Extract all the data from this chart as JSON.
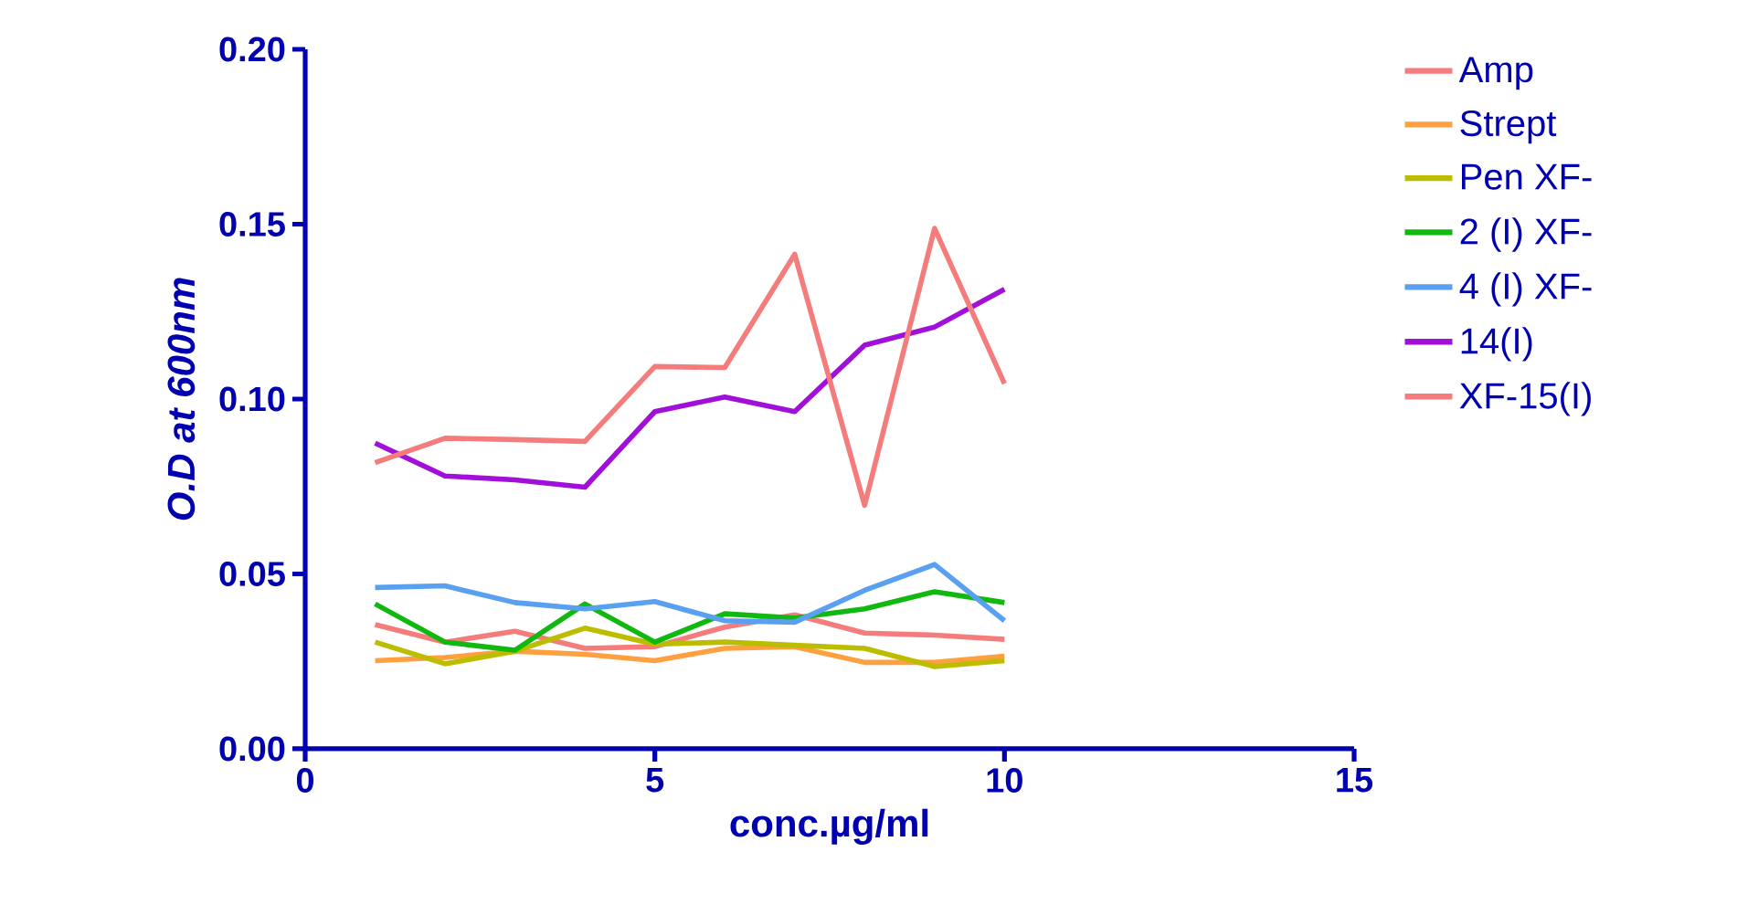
{
  "chart_data": {
    "type": "line",
    "xlabel": "conc.µg/ml",
    "ylabel": "O.D at 600nm",
    "x": [
      1,
      2,
      3,
      4,
      5,
      6,
      7,
      8,
      9,
      10
    ],
    "series": [
      {
        "name": "Amp",
        "color": "#f47c7c",
        "values": [
          0.0355,
          0.0305,
          0.0336,
          0.0287,
          0.0292,
          0.0348,
          0.0383,
          0.0331,
          0.0325,
          0.0313
        ]
      },
      {
        "name": "Strept",
        "color": "#ffa040",
        "values": [
          0.0252,
          0.0261,
          0.0279,
          0.027,
          0.0252,
          0.0287,
          0.0292,
          0.0247,
          0.0247,
          0.0265
        ]
      },
      {
        "name": "Pen XF-",
        "color": "#bdbd00",
        "values": [
          0.0305,
          0.0243,
          0.0279,
          0.0345,
          0.0299,
          0.0305,
          0.0296,
          0.0287,
          0.0235,
          0.0252
        ]
      },
      {
        "name": "2 (I) XF-",
        "color": "#10b810",
        "values": [
          0.0414,
          0.0305,
          0.0282,
          0.0414,
          0.0305,
          0.0386,
          0.0374,
          0.04,
          0.0449,
          0.0418
        ]
      },
      {
        "name": "4 (I) XF-",
        "color": "#5aa0f0",
        "values": [
          0.0461,
          0.0466,
          0.0418,
          0.04,
          0.0421,
          0.0366,
          0.0362,
          0.0453,
          0.0527,
          0.0366
        ]
      },
      {
        "name": "14(I)",
        "color": "#a010d8",
        "values": [
          0.0874,
          0.078,
          0.0769,
          0.0748,
          0.0964,
          0.1006,
          0.0964,
          0.1154,
          0.1206,
          0.1314
        ]
      },
      {
        "name": "XF-15(I)",
        "color": "#f47c7c",
        "values": [
          0.0818,
          0.0888,
          0.0884,
          0.0879,
          0.1093,
          0.109,
          0.1414,
          0.0696,
          0.1488,
          0.1044
        ]
      }
    ],
    "xlim": [
      0,
      15
    ],
    "xticks": [
      0,
      5,
      10,
      15
    ],
    "ylim": [
      0,
      0.2
    ],
    "yticks": [
      {
        "value": 0,
        "label": "0.00"
      },
      {
        "value": 0.05,
        "label": "0.05"
      },
      {
        "value": 0.1,
        "label": "0.10"
      },
      {
        "value": 0.15,
        "label": "0.15"
      },
      {
        "value": 0.2,
        "label": "0.20"
      }
    ],
    "legend": "right",
    "grid": false,
    "marker": "none",
    "line_style": "solid"
  }
}
